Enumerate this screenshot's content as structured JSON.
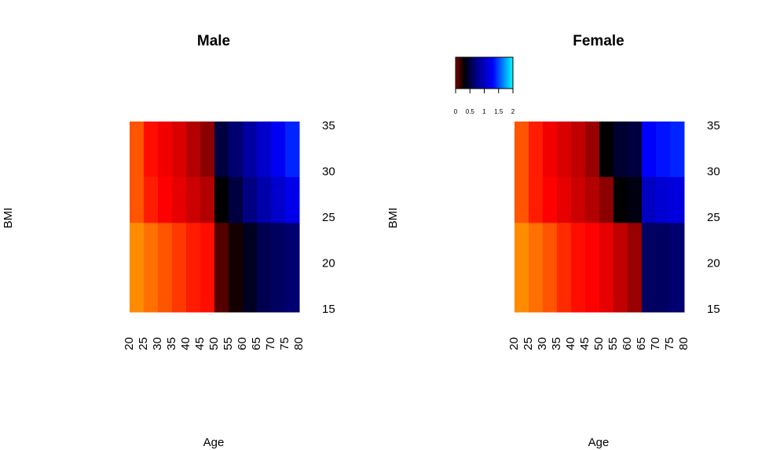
{
  "chart_data": [
    {
      "type": "heatmap",
      "title": "Male",
      "xlabel": "Age",
      "ylabel": "BMI",
      "x_bins": [
        20,
        25,
        30,
        35,
        40,
        45,
        50,
        55,
        60,
        65,
        70,
        75,
        80
      ],
      "y_bins": [
        14.75,
        24.5,
        29.5,
        35.5
      ],
      "values": [
        [
          -1,
          -0.9,
          -0.8,
          -0.7,
          -0.6,
          -0.55,
          0.1,
          0.25,
          0.4,
          0.55,
          0.6,
          0.65
        ],
        [
          -0.8,
          -0.6,
          -0.5,
          -0.4,
          -0.3,
          -0.2,
          0.3,
          0.5,
          0.7,
          0.9,
          1.05,
          1.2
        ],
        [
          -0.8,
          -0.55,
          -0.45,
          -0.35,
          -0.2,
          -0.05,
          0.5,
          0.65,
          0.85,
          1.05,
          1.25,
          1.4
        ]
      ],
      "xlim": [
        20,
        80
      ],
      "xticks": [
        20,
        25,
        30,
        35,
        40,
        45,
        50,
        55,
        60,
        65,
        70,
        75,
        80
      ],
      "ylim": [
        14.75,
        35.5
      ],
      "yticks": [
        15,
        20,
        25,
        30,
        35
      ],
      "colorscale": [
        [
          -1,
          "#ff8c00"
        ],
        [
          -0.5,
          "#ff0000"
        ],
        [
          0,
          "#800000"
        ],
        [
          0.3,
          "#000000"
        ],
        [
          0.7,
          "#000080"
        ],
        [
          1.3,
          "#0000ff"
        ],
        [
          2,
          "#00ffff"
        ]
      ]
    },
    {
      "type": "heatmap",
      "title": "Female",
      "xlabel": "Age",
      "ylabel": "BMI",
      "x_bins": [
        20,
        25,
        30,
        35,
        40,
        45,
        50,
        55,
        60,
        65,
        70,
        75,
        80
      ],
      "y_bins": [
        14.75,
        24.5,
        29.5,
        35.5
      ],
      "values": [
        [
          -1,
          -0.9,
          -0.8,
          -0.65,
          -0.55,
          -0.5,
          -0.4,
          -0.25,
          -0.1,
          0.6,
          0.6,
          0.65
        ],
        [
          -0.8,
          -0.6,
          -0.5,
          -0.4,
          -0.3,
          -0.2,
          -0.05,
          0.3,
          0.35,
          1.0,
          1.1,
          1.15
        ],
        [
          -0.8,
          -0.6,
          -0.45,
          -0.35,
          -0.25,
          -0.1,
          0.3,
          0.45,
          0.5,
          1.3,
          1.35,
          1.4
        ]
      ],
      "xlim": [
        20,
        80
      ],
      "xticks": [
        20,
        25,
        30,
        35,
        40,
        45,
        50,
        55,
        60,
        65,
        70,
        75,
        80
      ],
      "ylim": [
        14.75,
        35.5
      ],
      "yticks": [
        15,
        20,
        25,
        30,
        35
      ],
      "colorscale": [
        [
          -1,
          "#ff8c00"
        ],
        [
          -0.5,
          "#ff0000"
        ],
        [
          0,
          "#800000"
        ],
        [
          0.3,
          "#000000"
        ],
        [
          0.7,
          "#000080"
        ],
        [
          1.3,
          "#0000ff"
        ],
        [
          2,
          "#00ffff"
        ]
      ],
      "colorbar": {
        "lim": [
          0,
          2
        ],
        "ticks": [
          0,
          0.5,
          1,
          1.5,
          2
        ]
      }
    }
  ]
}
